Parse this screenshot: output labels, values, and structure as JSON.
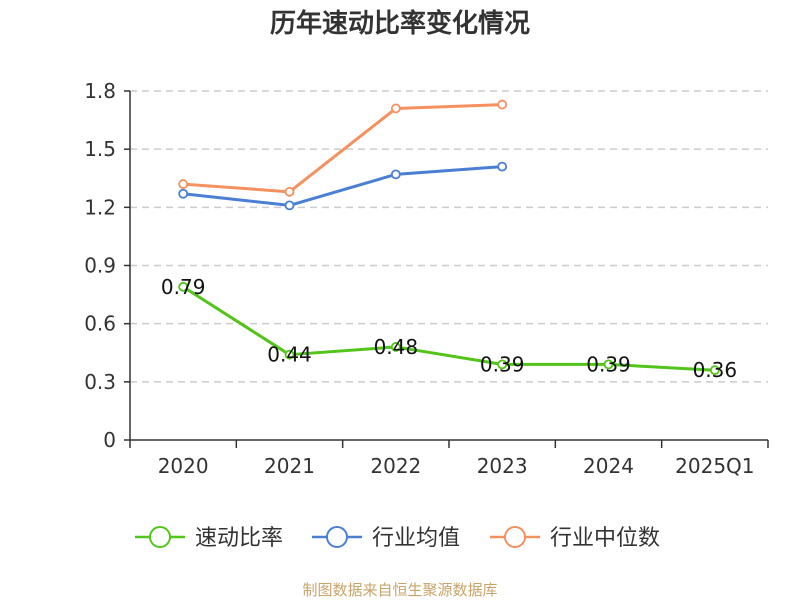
{
  "chart_data": {
    "type": "line",
    "title": "历年速动比率变化情况",
    "categories": [
      "2020",
      "2021",
      "2022",
      "2023",
      "2024",
      "2025Q1"
    ],
    "ylim": [
      0,
      1.8
    ],
    "yticks": [
      0,
      0.3,
      0.6,
      0.9,
      1.2,
      1.5,
      1.8
    ],
    "ytick_labels": [
      "0",
      "0.3",
      "0.6",
      "0.9",
      "1.2",
      "1.5",
      "1.8"
    ],
    "grid": "horizontal dashed",
    "legend_position": "bottom",
    "series": [
      {
        "name": "速动比率",
        "color": "#52c41a",
        "values": [
          0.79,
          0.44,
          0.48,
          0.39,
          0.39,
          0.36
        ],
        "data_labels": [
          "0.79",
          "0.44",
          "0.48",
          "0.39",
          "0.39",
          "0.36"
        ]
      },
      {
        "name": "行业均值",
        "color": "#4a7fd4",
        "values": [
          1.27,
          1.21,
          1.37,
          1.41,
          null,
          null
        ]
      },
      {
        "name": "行业中位数",
        "color": "#f5915e",
        "values": [
          1.32,
          1.28,
          1.71,
          1.73,
          null,
          null
        ]
      }
    ]
  },
  "source": "制图数据来自恒生聚源数据库"
}
